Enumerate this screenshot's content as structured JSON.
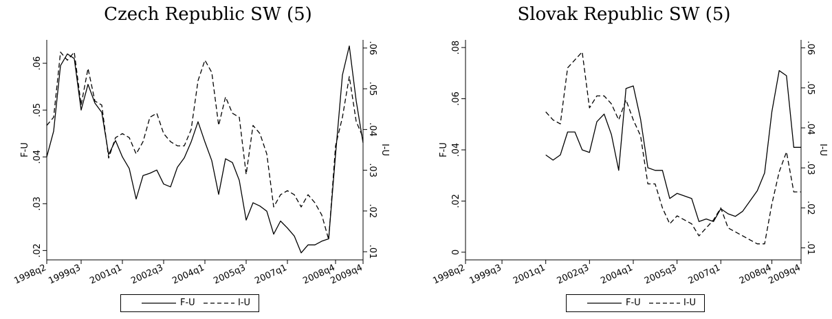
{
  "chart_data": [
    {
      "type": "line",
      "title": "Czech Republic SW (5)",
      "x_categories": [
        "1998q2",
        "1998q3",
        "1998q4",
        "1999q1",
        "1999q2",
        "1999q3",
        "1999q4",
        "2000q1",
        "2000q2",
        "2000q3",
        "2000q4",
        "2001q1",
        "2001q2",
        "2001q3",
        "2001q4",
        "2002q1",
        "2002q2",
        "2002q3",
        "2002q4",
        "2003q1",
        "2003q2",
        "2003q3",
        "2003q4",
        "2004q1",
        "2004q2",
        "2004q3",
        "2004q4",
        "2005q1",
        "2005q2",
        "2005q3",
        "2005q4",
        "2006q1",
        "2006q2",
        "2006q3",
        "2006q4",
        "2007q1",
        "2007q2",
        "2007q3",
        "2007q4",
        "2008q1",
        "2008q2",
        "2008q3",
        "2008q4",
        "2009q1",
        "2009q2",
        "2009q3",
        "2009q4"
      ],
      "x_tick_labels": [
        "1998q2",
        "1999q3",
        "2001q1",
        "2002q3",
        "2004q1",
        "2005q3",
        "2007q1",
        "2008q4",
        "2009q4"
      ],
      "ylabel_left": "F-U",
      "ylabel_right": "I-U",
      "y_left_ticks": [
        ".02",
        ".03",
        ".04",
        ".05",
        ".06"
      ],
      "y_right_ticks": [
        ".01",
        ".02",
        ".03",
        ".04",
        ".05",
        ".06"
      ],
      "ylim_left": [
        0.018,
        0.065
      ],
      "ylim_right": [
        0.008,
        0.062
      ],
      "legend": [
        "F-U",
        "I-U"
      ],
      "legend_position": "bottom",
      "series": [
        {
          "name": "F-U",
          "axis": "left",
          "style": "solid",
          "values": [
            0.04,
            0.0455,
            0.0595,
            0.062,
            0.061,
            0.05,
            0.0555,
            0.0515,
            0.0495,
            0.0405,
            0.0435,
            0.04,
            0.0375,
            0.031,
            0.036,
            0.0365,
            0.0372,
            0.0342,
            0.0336,
            0.0378,
            0.0398,
            0.0432,
            0.0475,
            0.0432,
            0.0392,
            0.032,
            0.0396,
            0.0388,
            0.035,
            0.0265,
            0.0302,
            0.0295,
            0.0284,
            0.0235,
            0.0263,
            0.0248,
            0.0231,
            0.0195,
            0.0212,
            0.0212,
            0.022,
            0.0225,
            0.0405,
            0.0575,
            0.0637,
            0.052,
            0.043
          ]
        },
        {
          "name": "I-U",
          "axis": "right",
          "style": "dashed",
          "values": [
            0.041,
            0.043,
            0.059,
            0.057,
            0.059,
            0.046,
            0.055,
            0.047,
            0.046,
            0.033,
            0.038,
            0.039,
            0.038,
            0.034,
            0.037,
            0.043,
            0.044,
            0.039,
            0.037,
            0.036,
            0.036,
            0.04,
            0.052,
            0.057,
            0.054,
            0.041,
            0.048,
            0.044,
            0.043,
            0.029,
            0.041,
            0.039,
            0.034,
            0.021,
            0.024,
            0.025,
            0.024,
            0.021,
            0.024,
            0.022,
            0.019,
            0.013,
            0.036,
            0.043,
            0.053,
            0.042,
            0.038
          ]
        }
      ]
    },
    {
      "type": "line",
      "title": "Slovak Republic SW (5)",
      "x_categories": [
        "1998q2",
        "1998q3",
        "1998q4",
        "1999q1",
        "1999q2",
        "1999q3",
        "1999q4",
        "2000q1",
        "2000q2",
        "2000q3",
        "2000q4",
        "2001q1",
        "2001q2",
        "2001q3",
        "2001q4",
        "2002q1",
        "2002q2",
        "2002q3",
        "2002q4",
        "2003q1",
        "2003q2",
        "2003q3",
        "2003q4",
        "2004q1",
        "2004q2",
        "2004q3",
        "2004q4",
        "2005q1",
        "2005q2",
        "2005q3",
        "2005q4",
        "2006q1",
        "2006q2",
        "2006q3",
        "2006q4",
        "2007q1",
        "2007q2",
        "2007q3",
        "2007q4",
        "2008q1",
        "2008q2",
        "2008q3",
        "2008q4",
        "2009q1",
        "2009q2",
        "2009q3",
        "2009q4"
      ],
      "x_tick_labels": [
        "1998q2",
        "1999q3",
        "2001q1",
        "2002q3",
        "2004q1",
        "2005q3",
        "2007q1",
        "2008q4",
        "2009q4"
      ],
      "ylabel_left": "F-U",
      "ylabel_right": "I-U",
      "y_left_ticks": [
        "0",
        ".02",
        ".04",
        ".06",
        ".08"
      ],
      "y_right_ticks": [
        ".01",
        ".02",
        ".03",
        ".04",
        ".05",
        ".06"
      ],
      "ylim_left": [
        -0.003,
        0.083
      ],
      "ylim_right": [
        0.007,
        0.062
      ],
      "legend": [
        "F-U",
        "I-U"
      ],
      "legend_position": "bottom",
      "series": [
        {
          "name": "F-U",
          "axis": "left",
          "style": "solid",
          "values": [
            null,
            null,
            null,
            null,
            null,
            null,
            null,
            null,
            null,
            null,
            null,
            0.038,
            0.036,
            0.038,
            0.047,
            0.047,
            0.04,
            0.039,
            0.051,
            0.054,
            0.046,
            0.032,
            0.064,
            0.065,
            0.052,
            0.033,
            0.032,
            0.032,
            0.021,
            0.023,
            0.022,
            0.021,
            0.012,
            0.013,
            0.012,
            0.017,
            0.015,
            0.014,
            0.016,
            0.02,
            0.024,
            0.031,
            0.055,
            0.071,
            0.069,
            0.041,
            0.041
          ]
        },
        {
          "name": "I-U",
          "axis": "right",
          "style": "dashed",
          "values": [
            null,
            null,
            null,
            null,
            null,
            null,
            null,
            null,
            null,
            null,
            null,
            0.044,
            0.042,
            0.041,
            0.055,
            0.057,
            0.059,
            0.045,
            0.048,
            0.048,
            0.046,
            0.042,
            0.047,
            0.042,
            0.038,
            0.026,
            0.026,
            0.02,
            0.016,
            0.018,
            0.017,
            0.016,
            0.013,
            0.015,
            0.017,
            0.02,
            0.015,
            0.014,
            0.013,
            0.012,
            0.011,
            0.011,
            0.021,
            0.029,
            0.034,
            0.024,
            0.024
          ]
        }
      ]
    }
  ]
}
